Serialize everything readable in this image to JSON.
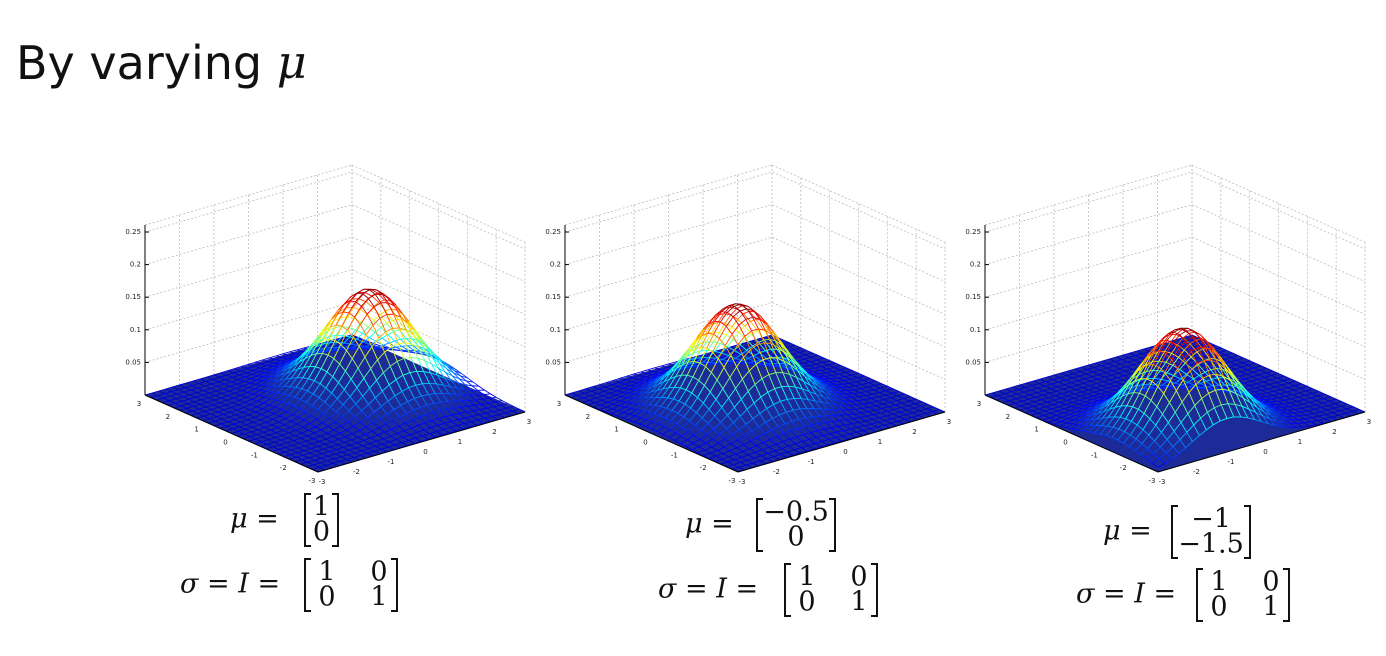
{
  "title": "By varying",
  "title_symbol": "μ",
  "plots": [
    {
      "zticks": [
        0.25,
        0.2,
        0.15,
        0.1,
        0.05
      ],
      "xticks": [
        -3,
        -2,
        -1,
        0,
        1,
        2,
        3
      ],
      "yticks": [
        3,
        2,
        1,
        0,
        -1,
        -2,
        -3
      ],
      "mu_label": "μ =",
      "mu": [
        "1",
        "0"
      ],
      "sigma_label": "σ = I =",
      "sigma": [
        [
          "1",
          "0"
        ],
        [
          "0",
          "1"
        ]
      ]
    },
    {
      "zticks": [
        0.25,
        0.2,
        0.15,
        0.1,
        0.05
      ],
      "xticks": [
        -3,
        -2,
        -1,
        0,
        1,
        2,
        3
      ],
      "yticks": [
        3,
        2,
        1,
        0,
        -1,
        -2,
        -3
      ],
      "mu_label": "μ =",
      "mu": [
        "−0.5",
        "0"
      ],
      "sigma_label": "σ = I =",
      "sigma": [
        [
          "1",
          "0"
        ],
        [
          "0",
          "1"
        ]
      ]
    },
    {
      "zticks": [
        0.25,
        0.2,
        0.15,
        0.1,
        0.05
      ],
      "xticks": [
        -3,
        -2,
        -1,
        0,
        1,
        2,
        3
      ],
      "yticks": [
        3,
        2,
        1,
        0,
        -1,
        -2,
        -3
      ],
      "mu_label": "μ =",
      "mu": [
        "−1",
        "−1.5"
      ],
      "sigma_label": "σ = I =",
      "sigma": [
        [
          "1",
          "0"
        ],
        [
          "0",
          "1"
        ]
      ]
    }
  ]
}
